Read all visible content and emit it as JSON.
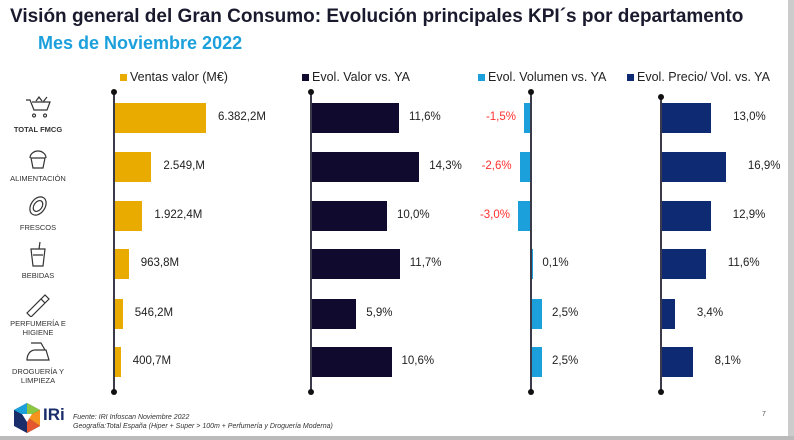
{
  "header": {
    "title": "Visión general del Gran Consumo: Evolución principales KPI´s por departamento",
    "subtitle": "Mes de Noviembre 2022"
  },
  "categories": [
    {
      "label": "TOTAL FMCG",
      "icon": "shopping-cart-icon"
    },
    {
      "label": "ALIMENTACIÓN",
      "icon": "muffin-icon"
    },
    {
      "label": "FRESCOS",
      "icon": "papaya-icon"
    },
    {
      "label": "BEBIDAS",
      "icon": "drink-cup-icon"
    },
    {
      "label": "PERFUMERÍA E HIGIENE",
      "icon": "tube-icon"
    },
    {
      "label": "DROGUERÍA Y LIMPIEZA",
      "icon": "iron-icon"
    }
  ],
  "chart_data": [
    {
      "type": "bar",
      "orientation": "horizontal",
      "legend": "Ventas valor (M€)",
      "color": "#e9ab00",
      "unit": "M€",
      "values": [
        6382.2,
        2549,
        1922.4,
        963.8,
        546.2,
        400.7
      ],
      "labels": [
        "6.382,2M",
        "2.549,M",
        "1.922,4M",
        "963,8M",
        "546,2M",
        "400,7M"
      ]
    },
    {
      "type": "bar",
      "orientation": "horizontal",
      "legend": "Evol. Valor vs. YA",
      "color": "#0f0a2e",
      "unit": "%",
      "values": [
        11.6,
        14.3,
        10.0,
        11.7,
        5.9,
        10.6
      ],
      "labels": [
        "11,6%",
        "14,3%",
        "10,0%",
        "11,7%",
        "5,9%",
        "10,6%"
      ]
    },
    {
      "type": "bar",
      "orientation": "horizontal",
      "legend": "Evol. Volumen vs. YA",
      "color": "#1ba0dc",
      "negative_label_color": "#ff3030",
      "unit": "%",
      "values": [
        -1.5,
        -2.6,
        -3.0,
        0.1,
        2.5,
        2.5
      ],
      "labels": [
        "-1,5%",
        "-2,6%",
        "-3,0%",
        "0,1%",
        "2,5%",
        "2,5%"
      ]
    },
    {
      "type": "bar",
      "orientation": "horizontal",
      "legend": "Evol. Precio/ Vol. vs. YA",
      "color": "#0d2a73",
      "unit": "%",
      "values": [
        13.0,
        16.9,
        12.9,
        11.6,
        3.4,
        8.1
      ],
      "labels": [
        "13,0%",
        "16,9%",
        "12,9%",
        "11,6%",
        "3,4%",
        "8,1%"
      ]
    }
  ],
  "footer": {
    "source": "Fuente: IRI Infoscan Noviembre 2022",
    "geo": "Geografía:Total España (Hiper + Super > 100m + Perfumería y Droguería Moderna)",
    "page": "7",
    "logo": "IRi"
  }
}
